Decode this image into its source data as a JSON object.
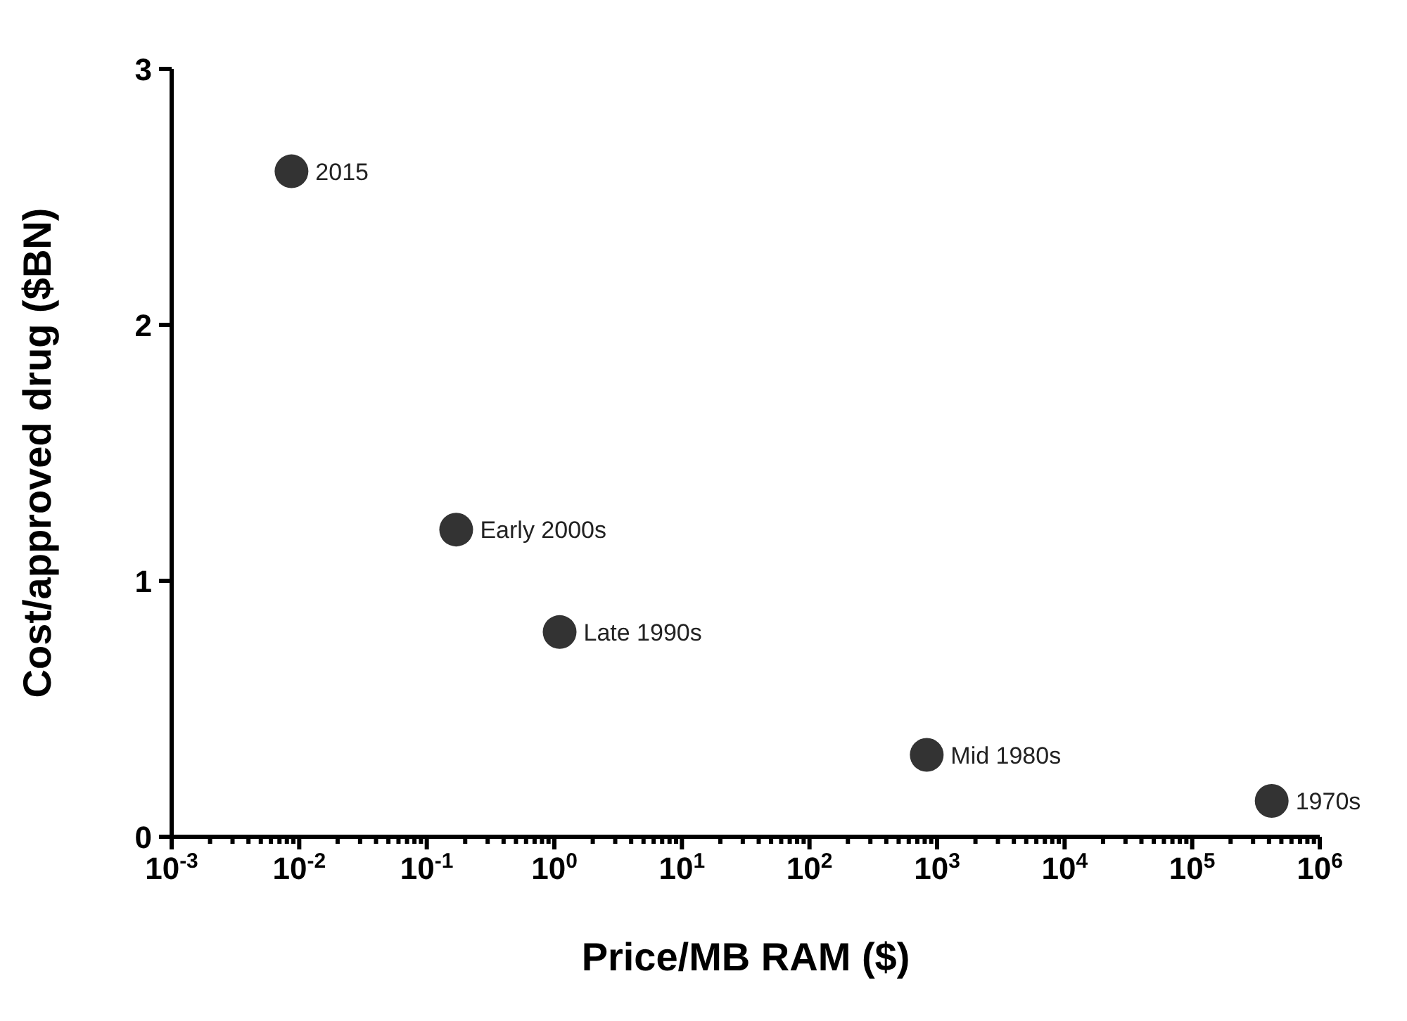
{
  "chart_data": {
    "type": "scatter",
    "xlabel": "Price/MB RAM ($)",
    "ylabel": "Cost/approved drug ($BN)",
    "x": [
      0.0087,
      0.17,
      1.1,
      830,
      420000
    ],
    "series": [
      {
        "color": "#333333",
        "values": [
          2.6,
          1.2,
          0.8,
          0.32,
          0.14
        ]
      }
    ],
    "log": "x",
    "marker": "circle",
    "grid": false,
    "legend": false,
    "xlim": [
      0.001,
      1000000
    ],
    "xticks": [
      {
        "value": 0.001,
        "label": "10$^{-3}$"
      },
      {
        "value": 0.002,
        "label": null
      },
      {
        "value": 0.003,
        "label": null
      },
      {
        "value": 0.004,
        "label": null
      },
      {
        "value": 0.005,
        "label": null
      },
      {
        "value": 0.006,
        "label": null
      },
      {
        "value": 0.007,
        "label": null
      },
      {
        "value": 0.008,
        "label": null
      },
      {
        "value": 0.009,
        "label": null
      },
      {
        "value": 0.01,
        "label": "10$^{-2}$"
      },
      {
        "value": 0.02,
        "label": null
      },
      {
        "value": 0.03,
        "label": null
      },
      {
        "value": 0.04,
        "label": null
      },
      {
        "value": 0.05,
        "label": null
      },
      {
        "value": 0.06,
        "label": null
      },
      {
        "value": 0.07,
        "label": null
      },
      {
        "value": 0.08,
        "label": null
      },
      {
        "value": 0.09,
        "label": null
      },
      {
        "value": 0.1,
        "label": "10$^{-1}$"
      },
      {
        "value": 0.2,
        "label": null
      },
      {
        "value": 0.3,
        "label": null
      },
      {
        "value": 0.4,
        "label": null
      },
      {
        "value": 0.5,
        "label": null
      },
      {
        "value": 0.6,
        "label": null
      },
      {
        "value": 0.7,
        "label": null
      },
      {
        "value": 0.8,
        "label": null
      },
      {
        "value": 0.9,
        "label": null
      },
      {
        "value": 1,
        "label": "10$^{0}$"
      },
      {
        "value": 2,
        "label": null
      },
      {
        "value": 3,
        "label": null
      },
      {
        "value": 4,
        "label": null
      },
      {
        "value": 5,
        "label": null
      },
      {
        "value": 6,
        "label": null
      },
      {
        "value": 7,
        "label": null
      },
      {
        "value": 8,
        "label": null
      },
      {
        "value": 9,
        "label": null
      },
      {
        "value": 10,
        "label": "10$^{1}$"
      },
      {
        "value": 20,
        "label": null
      },
      {
        "value": 30,
        "label": null
      },
      {
        "value": 40,
        "label": null
      },
      {
        "value": 50,
        "label": null
      },
      {
        "value": 60,
        "label": null
      },
      {
        "value": 70,
        "label": null
      },
      {
        "value": 80,
        "label": null
      },
      {
        "value": 90,
        "label": null
      },
      {
        "value": 100,
        "label": "10$^{2}$"
      },
      {
        "value": 200,
        "label": null
      },
      {
        "value": 300,
        "label": null
      },
      {
        "value": 400,
        "label": null
      },
      {
        "value": 500,
        "label": null
      },
      {
        "value": 600,
        "label": null
      },
      {
        "value": 700,
        "label": null
      },
      {
        "value": 800,
        "label": null
      },
      {
        "value": 900,
        "label": null
      },
      {
        "value": 1000,
        "label": "10$^{3}$"
      },
      {
        "value": 2000,
        "label": null
      },
      {
        "value": 3000,
        "label": null
      },
      {
        "value": 4000,
        "label": null
      },
      {
        "value": 5000,
        "label": null
      },
      {
        "value": 6000,
        "label": null
      },
      {
        "value": 7000,
        "label": null
      },
      {
        "value": 8000,
        "label": null
      },
      {
        "value": 9000,
        "label": null
      },
      {
        "value": 10000,
        "label": "10$^{4}$"
      },
      {
        "value": 20000,
        "label": null
      },
      {
        "value": 30000,
        "label": null
      },
      {
        "value": 40000,
        "label": null
      },
      {
        "value": 50000,
        "label": null
      },
      {
        "value": 60000,
        "label": null
      },
      {
        "value": 70000,
        "label": null
      },
      {
        "value": 80000,
        "label": null
      },
      {
        "value": 90000,
        "label": null
      },
      {
        "value": 100000,
        "label": "10$^{5}$"
      },
      {
        "value": 200000,
        "label": null
      },
      {
        "value": 300000,
        "label": null
      },
      {
        "value": 400000,
        "label": null
      },
      {
        "value": 500000,
        "label": null
      },
      {
        "value": 600000,
        "label": null
      },
      {
        "value": 700000,
        "label": null
      },
      {
        "value": 800000,
        "label": null
      },
      {
        "value": 900000,
        "label": null
      },
      {
        "value": 1000000,
        "label": "10$^{6}$"
      }
    ],
    "ylim": [
      0,
      3
    ],
    "yticks": [
      0,
      1,
      2,
      3
    ],
    "annotations": [
      {
        "text": "2015",
        "x": 0.0087,
        "y": 2.6
      },
      {
        "text": "Early 2000s",
        "x": 0.17,
        "y": 1.2
      },
      {
        "text": "Late 1990s",
        "x": 1.1,
        "y": 0.8
      },
      {
        "text": "Mid 1980s",
        "x": 830,
        "y": 0.32
      },
      {
        "text": "1970s",
        "x": 420000,
        "y": 0.14
      }
    ]
  }
}
